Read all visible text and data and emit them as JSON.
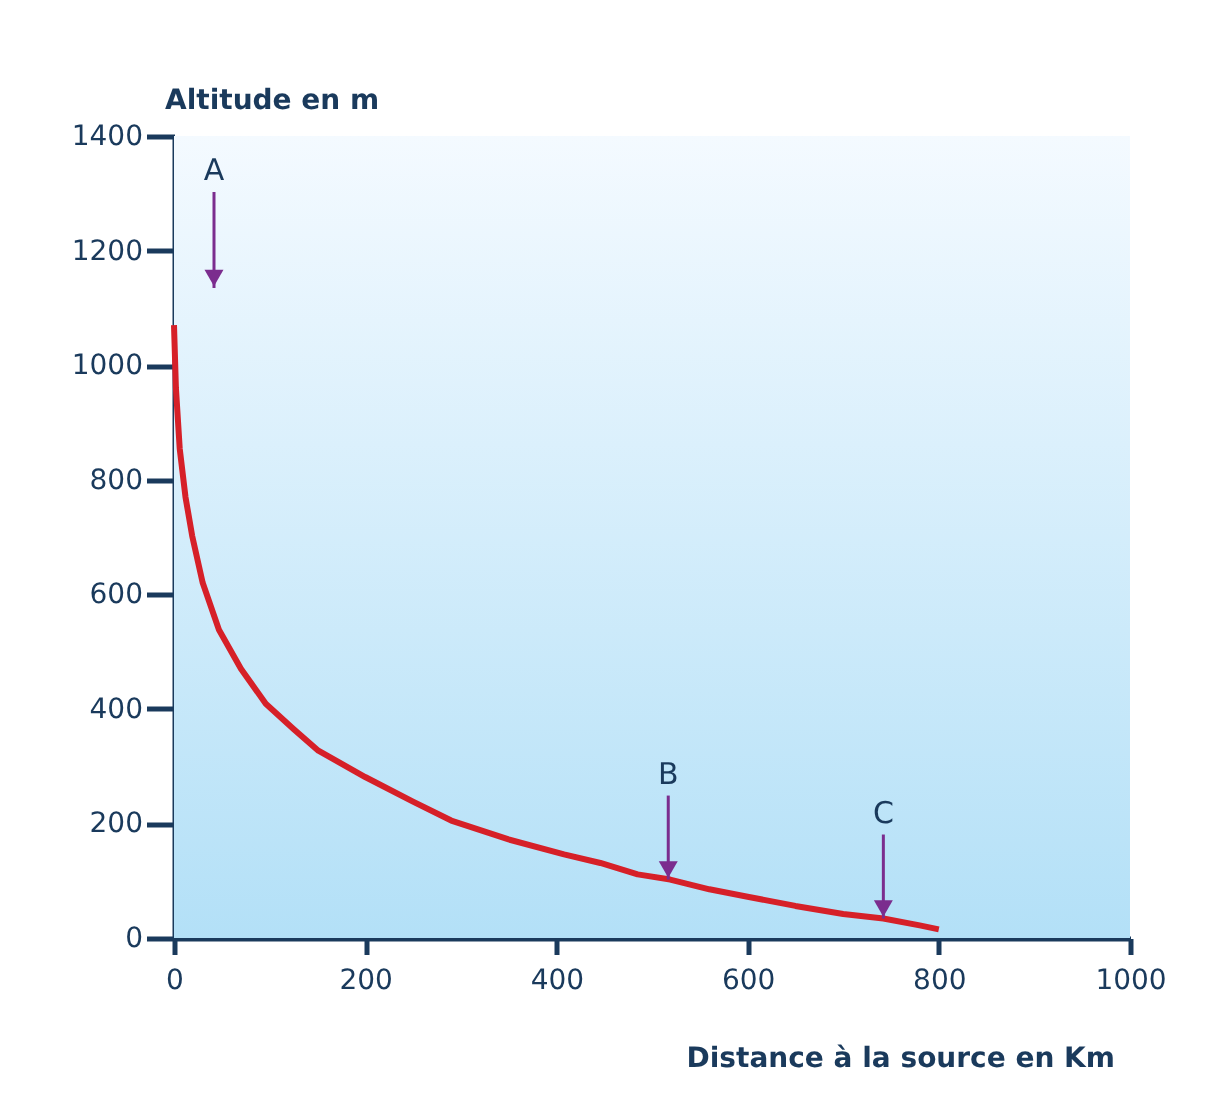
{
  "chart_data": {
    "type": "line",
    "xlabel": "Distance à la source en Km",
    "ylabel": "Altitude en m",
    "series": [
      {
        "color": "#d62028",
        "x": [
          0,
          2,
          6,
          12,
          19,
          30,
          47,
          70,
          96,
          125,
          151,
          200,
          250,
          290,
          350,
          408,
          446,
          485,
          519,
          560,
          600,
          650,
          700,
          742,
          780,
          800
        ],
        "values": [
          1070,
          960,
          854,
          770,
          702,
          620,
          538,
          470,
          409,
          365,
          327,
          281,
          238,
          205,
          172,
          146,
          131,
          111,
          102,
          85,
          72,
          56,
          42,
          34,
          22,
          15
        ]
      }
    ],
    "annotations": [
      "A",
      {
        "text": "B",
        "x": 517,
        "y": 102
      },
      {
        "text": "C",
        "x": 742,
        "y": 34
      }
    ],
    "xlim": [
      0,
      1000
    ],
    "ylim": [
      0,
      1400
    ],
    "xticks": [
      0,
      200,
      400,
      600,
      800,
      1000
    ],
    "yticks": [
      0,
      200,
      400,
      600,
      800,
      1000,
      1200,
      1400
    ],
    "grid": false,
    "marker": "none",
    "line_style": "solid"
  }
}
